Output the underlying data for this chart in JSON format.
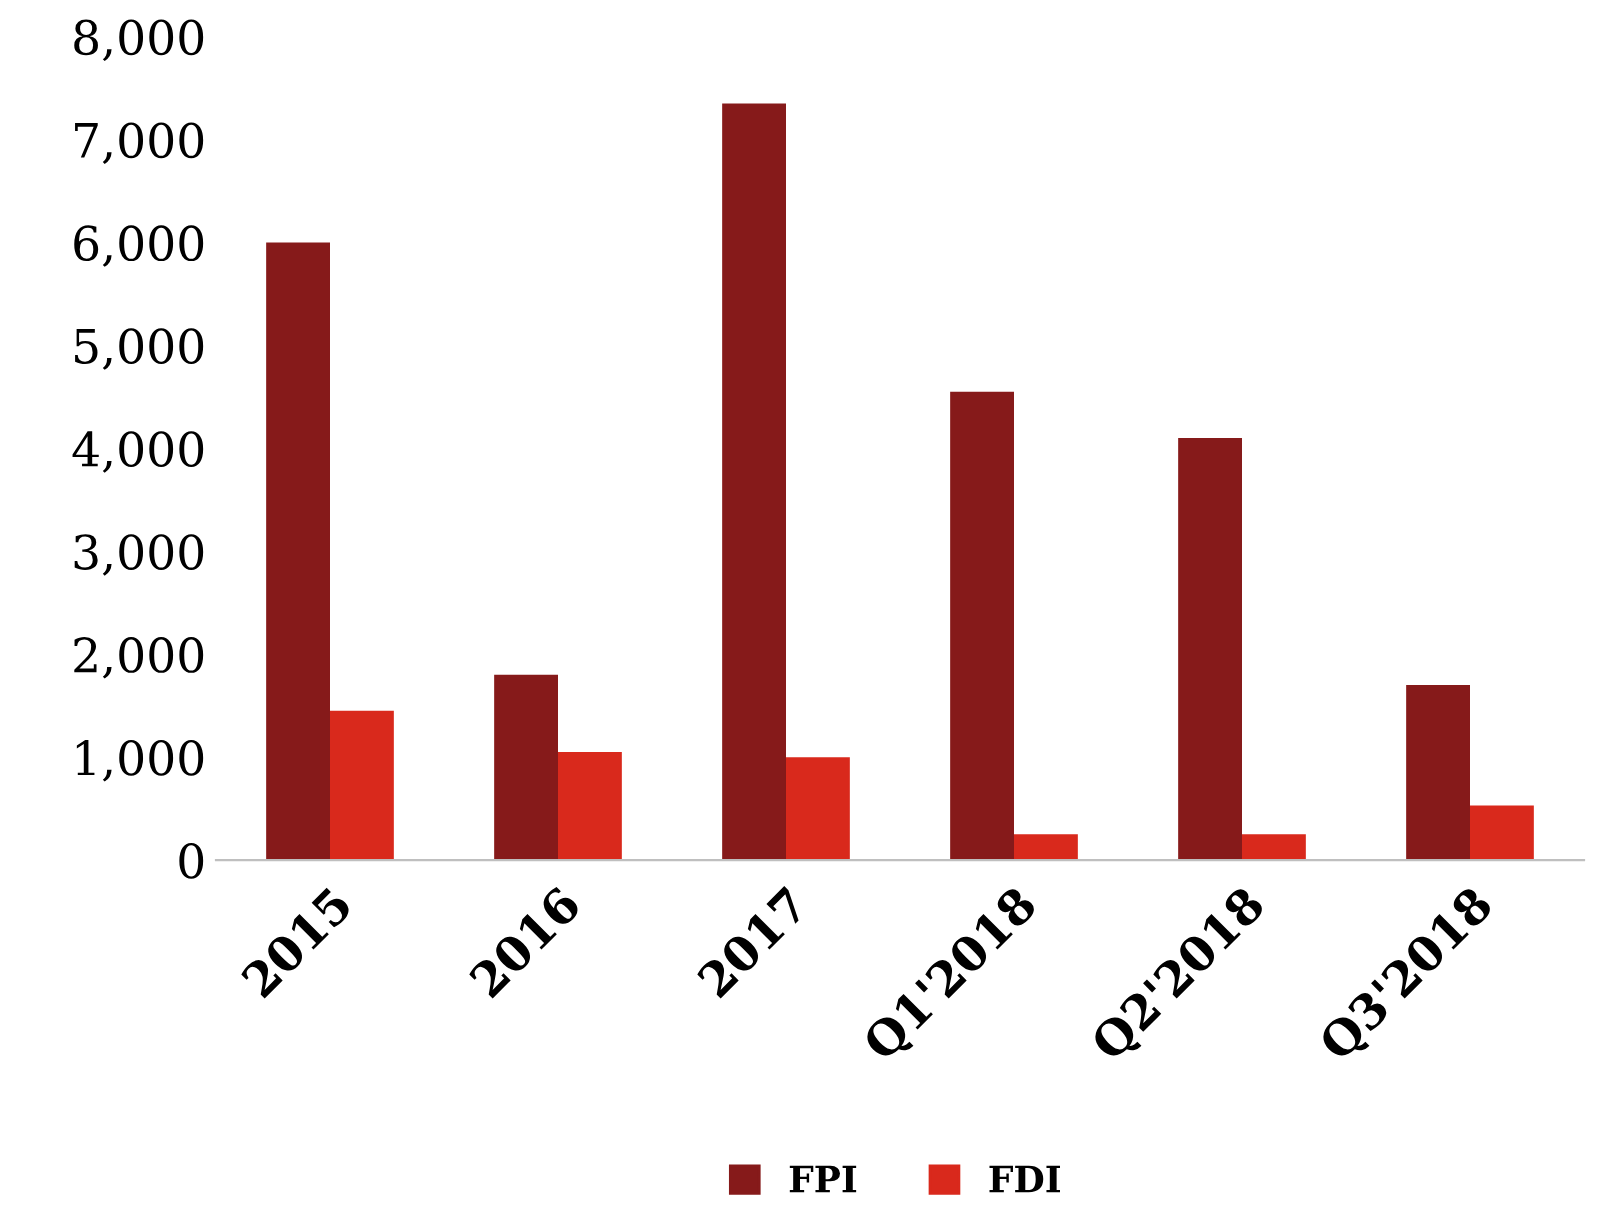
{
  "chart_data": {
    "type": "bar",
    "categories": [
      "2015",
      "2016",
      "2017",
      "Q1'2018",
      "Q2'2018",
      "Q3'2018"
    ],
    "series": [
      {
        "name": "FPI",
        "color": "#861a1a",
        "values": [
          6000,
          1800,
          7350,
          4550,
          4100,
          1700
        ]
      },
      {
        "name": "FDI",
        "color": "#d9291c",
        "values": [
          1450,
          1050,
          1000,
          250,
          250,
          530
        ]
      }
    ],
    "ylim": [
      0,
      8000
    ],
    "yticks": [
      {
        "value": 0,
        "label": "0"
      },
      {
        "value": 1000,
        "label": "1,000"
      },
      {
        "value": 2000,
        "label": "2,000"
      },
      {
        "value": 3000,
        "label": "3,000"
      },
      {
        "value": 4000,
        "label": "4,000"
      },
      {
        "value": 5000,
        "label": "5,000"
      },
      {
        "value": 6000,
        "label": "6,000"
      },
      {
        "value": 7000,
        "label": "7,000"
      },
      {
        "value": 8000,
        "label": "8,000"
      }
    ],
    "grid": false,
    "legend": "bottom"
  }
}
